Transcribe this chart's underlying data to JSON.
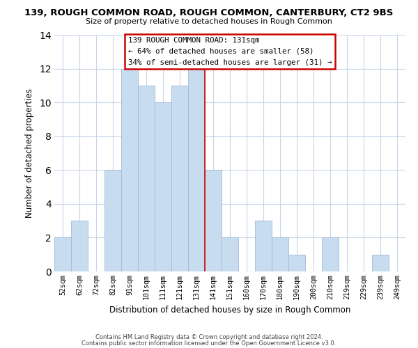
{
  "title": "139, ROUGH COMMON ROAD, ROUGH COMMON, CANTERBURY, CT2 9BS",
  "subtitle": "Size of property relative to detached houses in Rough Common",
  "xlabel": "Distribution of detached houses by size in Rough Common",
  "ylabel": "Number of detached properties",
  "bar_labels": [
    "52sqm",
    "62sqm",
    "72sqm",
    "82sqm",
    "91sqm",
    "101sqm",
    "111sqm",
    "121sqm",
    "131sqm",
    "141sqm",
    "151sqm",
    "160sqm",
    "170sqm",
    "180sqm",
    "190sqm",
    "200sqm",
    "210sqm",
    "219sqm",
    "229sqm",
    "239sqm",
    "249sqm"
  ],
  "bar_heights": [
    2,
    3,
    0,
    6,
    12,
    11,
    10,
    11,
    12,
    6,
    2,
    0,
    3,
    2,
    1,
    0,
    2,
    0,
    0,
    1,
    0
  ],
  "highlight_index": 8,
  "bar_color": "#c8dcf0",
  "bar_edge_color": "#a0b8d8",
  "highlight_line_color": "#cc0000",
  "ylim": [
    0,
    14
  ],
  "yticks": [
    0,
    2,
    4,
    6,
    8,
    10,
    12,
    14
  ],
  "annotation_title": "139 ROUGH COMMON ROAD: 131sqm",
  "annotation_line1": "← 64% of detached houses are smaller (58)",
  "annotation_line2": "34% of semi-detached houses are larger (31) →",
  "annotation_box_color": "#ffffff",
  "annotation_box_edge": "#cc0000",
  "footer1": "Contains HM Land Registry data © Crown copyright and database right 2024.",
  "footer2": "Contains public sector information licensed under the Open Government Licence v3.0.",
  "background_color": "#ffffff",
  "grid_color": "#c8d4e8"
}
